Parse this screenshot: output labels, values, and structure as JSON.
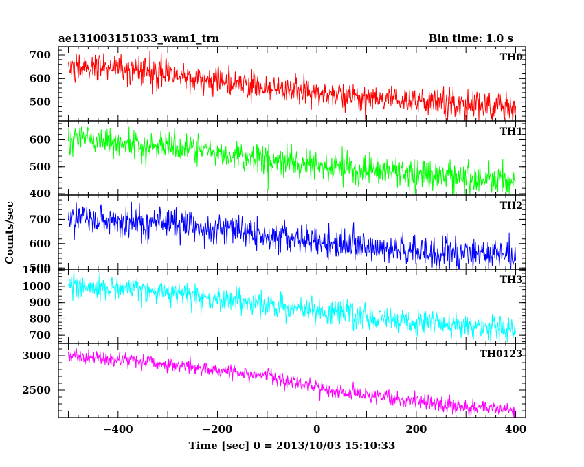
{
  "header": {
    "title": "ae131003151033_wam1_trn",
    "bin_time": "Bin time: 1.0 s"
  },
  "ylabel": "Counts/sec",
  "xlabel": "Time [sec] 0 = 2013/10/03 15:10:33",
  "chart_data": {
    "type": "line",
    "x_range": [
      -520,
      420
    ],
    "x_ticks": [
      -400,
      -200,
      0,
      200,
      400
    ],
    "x_tick_labels": [
      "−400",
      "−200",
      "0",
      "200",
      "400"
    ],
    "x_start": -500,
    "x_end": 400,
    "x_step": 1,
    "xlabel": "Time [sec] 0 = 2013/10/03 15:10:33",
    "ylabel": "Counts/sec",
    "panels": [
      {
        "name": "TH0",
        "color": "#ff0000",
        "ylim": [
          420,
          735
        ],
        "y_ticks": [
          500,
          600,
          700
        ],
        "trend": [
          [
            -500,
            650
          ],
          [
            -350,
            640
          ],
          [
            -200,
            590
          ],
          [
            0,
            535
          ],
          [
            200,
            505
          ],
          [
            400,
            475
          ]
        ],
        "noise_sd": 30
      },
      {
        "name": "TH1",
        "color": "#00ff00",
        "ylim": [
          395,
          670
        ],
        "y_ticks": [
          400,
          500,
          600
        ],
        "trend": [
          [
            -500,
            600
          ],
          [
            -300,
            575
          ],
          [
            -100,
            530
          ],
          [
            0,
            505
          ],
          [
            200,
            470
          ],
          [
            400,
            450
          ]
        ],
        "noise_sd": 28
      },
      {
        "name": "TH2",
        "color": "#0000ff",
        "ylim": [
          495,
          800
        ],
        "y_ticks": [
          500,
          600,
          700
        ],
        "trend": [
          [
            -500,
            705
          ],
          [
            -300,
            680
          ],
          [
            -100,
            640
          ],
          [
            0,
            610
          ],
          [
            200,
            570
          ],
          [
            400,
            545
          ]
        ],
        "noise_sd": 32
      },
      {
        "name": "TH3",
        "color": "#00ffff",
        "ylim": [
          650,
          1105
        ],
        "y_ticks": [
          700,
          800,
          900,
          1000,
          1100
        ],
        "trend": [
          [
            -500,
            1010
          ],
          [
            -300,
            960
          ],
          [
            -100,
            890
          ],
          [
            0,
            850
          ],
          [
            200,
            780
          ],
          [
            400,
            730
          ]
        ],
        "noise_sd": 40
      },
      {
        "name": "TH0123",
        "color": "#ff00ff",
        "ylim": [
          2100,
          3180
        ],
        "y_ticks": [
          2500,
          3000
        ],
        "trend": [
          [
            -500,
            3000
          ],
          [
            -300,
            2880
          ],
          [
            -100,
            2700
          ],
          [
            0,
            2530
          ],
          [
            200,
            2330
          ],
          [
            400,
            2200
          ]
        ],
        "noise_sd": 55
      }
    ]
  }
}
